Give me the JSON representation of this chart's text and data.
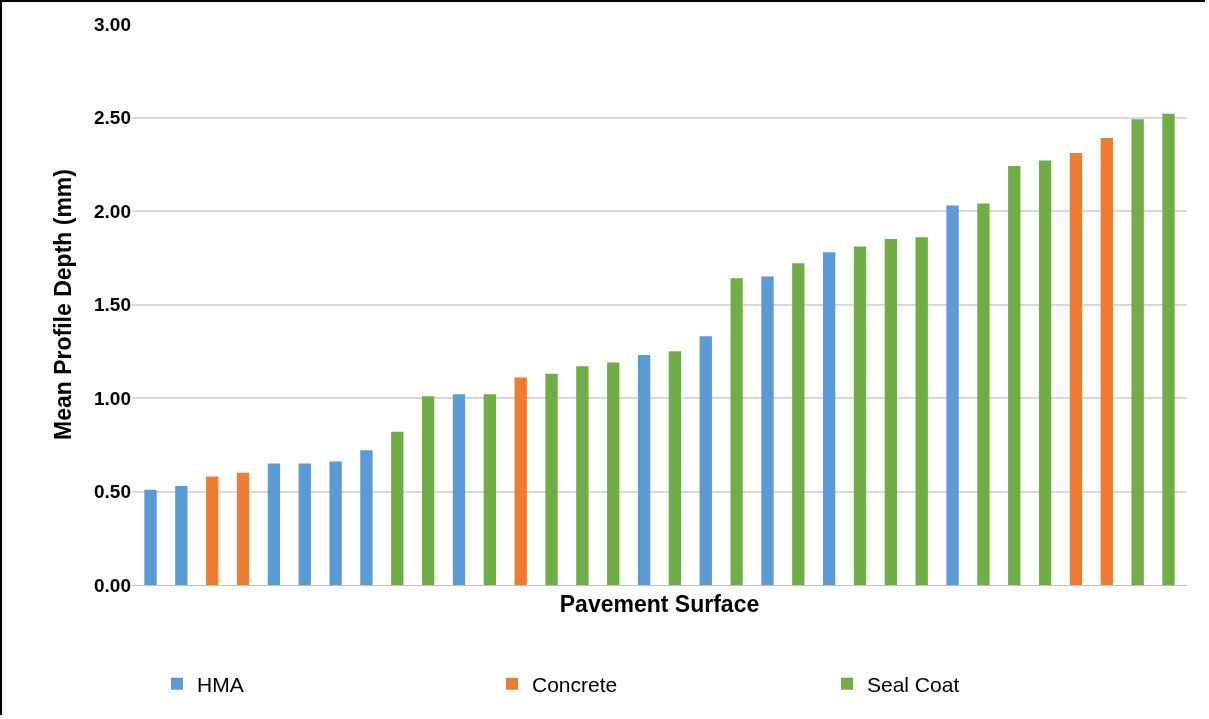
{
  "chart_data": {
    "type": "bar",
    "xlabel": "Pavement Surface",
    "ylabel": "Mean Profile Depth (mm)",
    "categories": [
      null,
      null,
      null,
      null,
      null,
      null,
      null,
      null,
      null,
      null,
      null,
      null,
      null,
      null,
      null,
      null,
      null,
      null,
      null,
      null,
      null,
      null,
      null,
      null,
      null,
      null,
      null,
      null,
      null,
      null,
      null,
      null,
      null,
      null
    ],
    "series": [
      {
        "name": "HMA",
        "color": "#5b9bd5",
        "values": [
          0.51,
          0.53,
          null,
          null,
          0.65,
          0.65,
          0.66,
          0.72,
          null,
          null,
          1.02,
          null,
          null,
          null,
          null,
          null,
          1.23,
          null,
          1.33,
          null,
          1.65,
          null,
          1.78,
          null,
          null,
          null,
          2.03,
          null,
          null,
          null,
          null,
          null,
          null,
          null
        ]
      },
      {
        "name": "Concrete",
        "color": "#ed7d31",
        "values": [
          null,
          null,
          0.58,
          0.6,
          null,
          null,
          null,
          null,
          null,
          null,
          null,
          null,
          1.11,
          null,
          null,
          null,
          null,
          null,
          null,
          null,
          null,
          null,
          null,
          null,
          null,
          null,
          null,
          null,
          null,
          null,
          2.31,
          2.39,
          null,
          null
        ]
      },
      {
        "name": "Seal Coat",
        "color": "#70ad47",
        "values": [
          null,
          null,
          null,
          null,
          null,
          null,
          null,
          null,
          0.82,
          1.01,
          null,
          1.02,
          null,
          1.13,
          1.17,
          1.19,
          null,
          1.25,
          null,
          1.64,
          null,
          1.72,
          null,
          1.81,
          1.85,
          1.86,
          null,
          2.04,
          2.24,
          2.27,
          null,
          null,
          2.49,
          2.52
        ]
      }
    ],
    "ylim": [
      0,
      3
    ],
    "yticks": [
      {
        "value": 0,
        "label": "0.00"
      },
      {
        "value": 0.5,
        "label": "0.50"
      },
      {
        "value": 1,
        "label": "1.00"
      },
      {
        "value": 1.5,
        "label": "1.50"
      },
      {
        "value": 2,
        "label": "2.00"
      },
      {
        "value": 2.5,
        "label": "2.50"
      },
      {
        "value": 3,
        "label": "3.00"
      }
    ],
    "grid": "y",
    "legend": "bottom",
    "tick_labels": "y"
  }
}
